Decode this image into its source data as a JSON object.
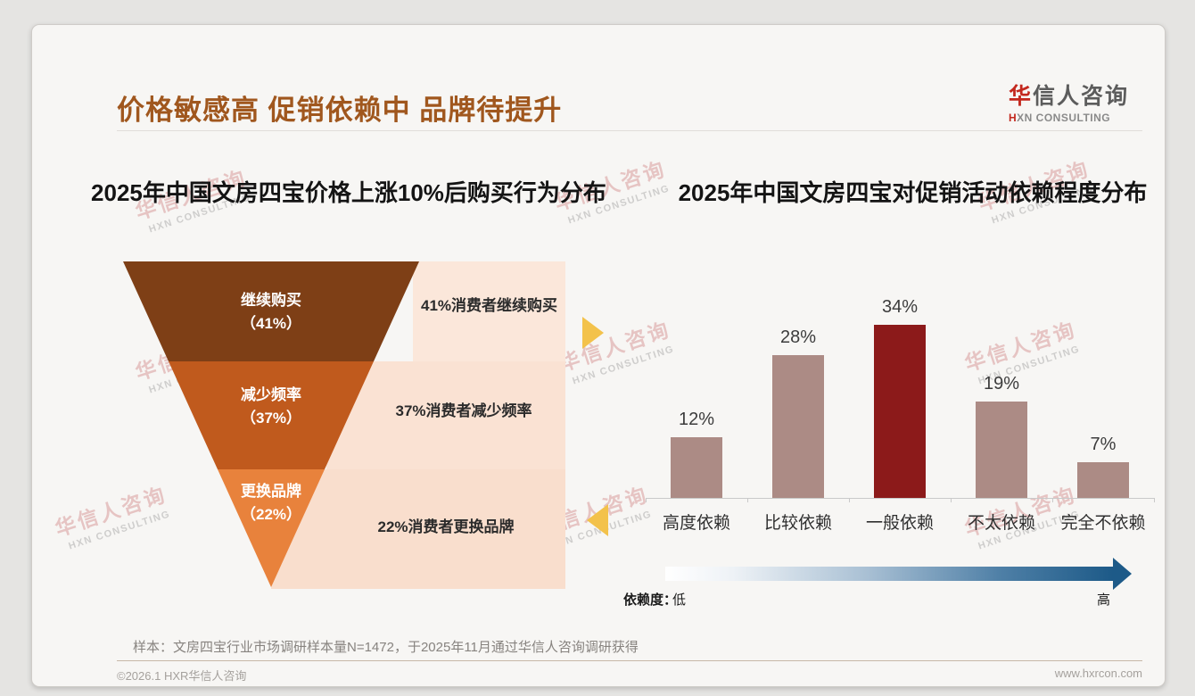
{
  "page": {
    "title": "价格敏感高 促销依赖中 品牌待提升",
    "footnote": "样本：文房四宝行业市场调研样本量N=1472，于2025年11月通过华信人咨询调研获得",
    "footer": {
      "copyright": "©2026.1 HXR华信人咨询",
      "website": "www.hxrcon.com"
    }
  },
  "logo": {
    "cn_accent": "华",
    "cn_rest": "信人咨询",
    "en_accent": "H",
    "en_rest": "XN CONSULTING"
  },
  "watermark": {
    "cn": "华信人咨询",
    "en": "HXN CONSULTING"
  },
  "legend": {
    "label": "依赖度：",
    "low": "低",
    "high": "高"
  },
  "chart_data": [
    {
      "type": "funnel",
      "title": "2025年中国文房四宝价格上涨10%后购买行为分布",
      "stages": [
        {
          "label": "继续购买",
          "pct_label": "（41%）",
          "value": 41,
          "annotation": "41%消费者继续购买",
          "color": "#7e3f16",
          "panel_color": "#fbe7da"
        },
        {
          "label": "减少频率",
          "pct_label": "（37%）",
          "value": 37,
          "annotation": "37%消费者减少频率",
          "color": "#c05a1d",
          "panel_color": "#fae2d3"
        },
        {
          "label": "更换品牌",
          "pct_label": "（22%）",
          "value": 22,
          "annotation": "22%消费者更换品牌",
          "color": "#e8823c",
          "panel_color": "#f9decd"
        }
      ]
    },
    {
      "type": "bar",
      "title": "2025年中国文房四宝对促销活动依赖程度分布",
      "categories": [
        "高度依赖",
        "比较依赖",
        "一般依赖",
        "不太依赖",
        "完全不依赖"
      ],
      "values": [
        12,
        28,
        34,
        19,
        7
      ],
      "value_labels": [
        "12%",
        "28%",
        "34%",
        "19%",
        "7%"
      ],
      "highlight_index": 2,
      "bar_color": "#ac8b85",
      "highlight_color": "#8c1a1a",
      "ylim": [
        0,
        40
      ],
      "grid": false,
      "legend_position": "none",
      "value_label_position": "above"
    }
  ],
  "accent_colors": {
    "title": "#a0571e",
    "connector_gold": "#f3c24b",
    "arrow_gradient_end": "#1d5a88"
  }
}
